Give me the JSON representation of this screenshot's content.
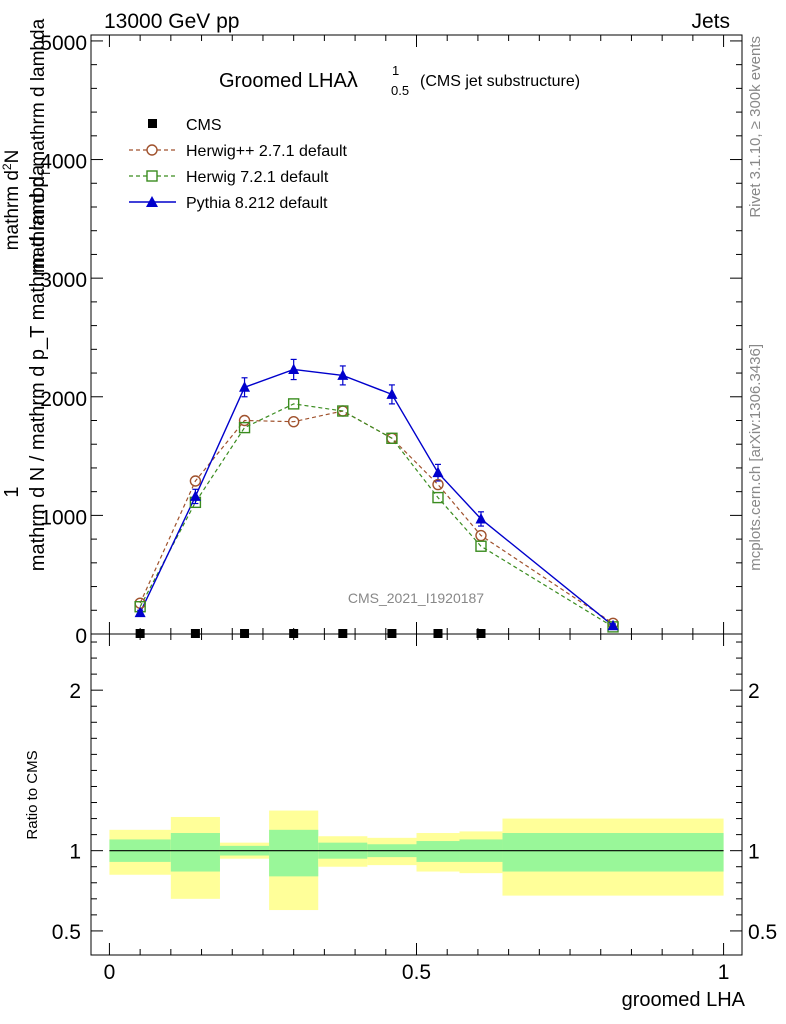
{
  "header": {
    "energy_label": "13000 GeV pp",
    "category_label": "Jets"
  },
  "side_labels": {
    "rivet": "Rivet 3.1.10, ≥ 300k events",
    "mcplots": "mcplots.cern.ch [arXiv:1306.3436]"
  },
  "watermark": "CMS_2021_I1920187",
  "colors": {
    "cms": "#000000",
    "herwigpp": "#a0522d",
    "herwig7": "#3a8c1f",
    "pythia": "#0000cc",
    "band_inner": "#99f799",
    "band_outer": "#ffff99"
  },
  "chart_data": [
    {
      "type": "line",
      "title_main": "Groomed LHA",
      "title_lambda": "λ",
      "title_sup": "1",
      "title_sub": "0.5",
      "title_suffix": "(CMS jet substructure)",
      "ylabel_top": "1",
      "ylabel_bottom": "mathrm d N / mathrm d p_T mathrm d lambda",
      "ylabel_numerator": "mathrm d",
      "ylabel_numerator_sup": "2",
      "ylabel_numerator_tail": "N",
      "ylabel_denominator": "mathrm d p",
      "ylabel_denominator_sub": "T",
      "ylabel_denominator_tail": "mathrm d lambda",
      "xlim": [
        -0.03,
        1.03
      ],
      "ylim": [
        0,
        5050
      ],
      "yticks": [
        0,
        1000,
        2000,
        3000,
        4000,
        5000
      ],
      "ytick_labels": [
        "0",
        "1000",
        "2000",
        "3000",
        "4000",
        "5000"
      ],
      "legend_position": "top-left",
      "series": [
        {
          "name": "CMS",
          "marker": "square-filled",
          "x": [
            0.05,
            0.14,
            0.22,
            0.3,
            0.38,
            0.46,
            0.535,
            0.605
          ],
          "values": [
            0,
            0,
            0,
            0,
            0,
            0,
            0,
            0
          ]
        },
        {
          "name": "Herwig++ 2.7.1 default",
          "marker": "circle-open",
          "x": [
            0.05,
            0.14,
            0.22,
            0.3,
            0.38,
            0.46,
            0.535,
            0.605,
            0.82
          ],
          "values": [
            260,
            1290,
            1800,
            1790,
            1880,
            1650,
            1260,
            830,
            90
          ]
        },
        {
          "name": "Herwig 7.2.1 default",
          "marker": "square-open",
          "x": [
            0.05,
            0.14,
            0.22,
            0.3,
            0.38,
            0.46,
            0.535,
            0.605,
            0.82
          ],
          "values": [
            230,
            1110,
            1740,
            1940,
            1880,
            1650,
            1150,
            740,
            60
          ]
        },
        {
          "name": "Pythia 8.212 default",
          "marker": "triangle-filled",
          "x": [
            0.05,
            0.14,
            0.22,
            0.3,
            0.38,
            0.46,
            0.535,
            0.605,
            0.82
          ],
          "values": [
            180,
            1160,
            2080,
            2230,
            2180,
            2020,
            1360,
            970,
            70
          ],
          "errors": [
            20,
            60,
            80,
            85,
            80,
            80,
            70,
            60,
            15
          ]
        }
      ]
    },
    {
      "type": "area",
      "ylabel": "Ratio to CMS",
      "xlabel": "groomed LHA",
      "xlim": [
        -0.03,
        1.03
      ],
      "ylim": [
        0.35,
        2.35
      ],
      "yticks": [
        0.5,
        1,
        2
      ],
      "ytick_labels": [
        "0.5",
        "1",
        "2"
      ],
      "xticks": [
        0,
        0.5,
        1
      ],
      "xtick_labels": [
        "0",
        "0.5",
        "1"
      ],
      "reference_line": 1,
      "bins": [
        {
          "x0": 0.0,
          "x1": 0.1,
          "inner": [
            0.93,
            1.07
          ],
          "outer": [
            0.85,
            1.13
          ]
        },
        {
          "x0": 0.1,
          "x1": 0.18,
          "inner": [
            0.87,
            1.11
          ],
          "outer": [
            0.7,
            1.21
          ]
        },
        {
          "x0": 0.18,
          "x1": 0.26,
          "inner": [
            0.97,
            1.03
          ],
          "outer": [
            0.95,
            1.05
          ]
        },
        {
          "x0": 0.26,
          "x1": 0.34,
          "inner": [
            0.84,
            1.13
          ],
          "outer": [
            0.63,
            1.25
          ]
        },
        {
          "x0": 0.34,
          "x1": 0.42,
          "inner": [
            0.95,
            1.05
          ],
          "outer": [
            0.9,
            1.09
          ]
        },
        {
          "x0": 0.42,
          "x1": 0.5,
          "inner": [
            0.96,
            1.04
          ],
          "outer": [
            0.91,
            1.08
          ]
        },
        {
          "x0": 0.5,
          "x1": 0.57,
          "inner": [
            0.93,
            1.06
          ],
          "outer": [
            0.87,
            1.11
          ]
        },
        {
          "x0": 0.57,
          "x1": 0.64,
          "inner": [
            0.93,
            1.07
          ],
          "outer": [
            0.86,
            1.12
          ]
        },
        {
          "x0": 0.64,
          "x1": 1.0,
          "inner": [
            0.87,
            1.11
          ],
          "outer": [
            0.72,
            1.2
          ]
        }
      ]
    }
  ]
}
